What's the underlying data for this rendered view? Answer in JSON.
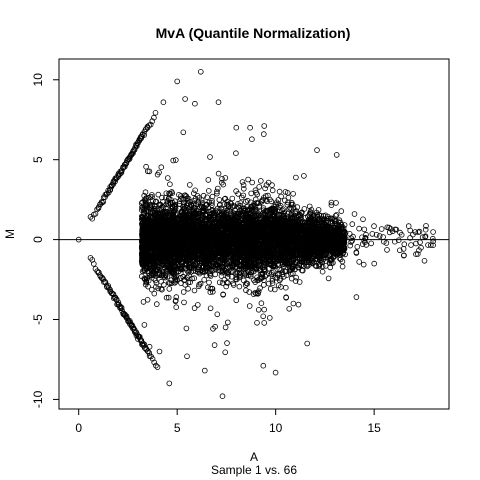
{
  "chart_data": {
    "type": "scatter",
    "title": "MvA (Quantile Normalization)",
    "xlabel": "A",
    "ylabel": "M",
    "subtitle": "Sample 1 vs. 66",
    "xlim": [
      -1.0,
      18.8
    ],
    "ylim": [
      -10.6,
      11.3
    ],
    "xticks": [
      0,
      5,
      10,
      15
    ],
    "yticks": [
      -10,
      -5,
      0,
      5,
      10
    ],
    "reference_line_y": 0,
    "point_style": "open-circle",
    "grid": false,
    "legend": "none",
    "point_count_approx": 6500,
    "upper_diagonal_arms": [
      {
        "a_start": 0.6,
        "a_end": 3.2,
        "slope": 2.0
      },
      {
        "a_start": 1.0,
        "a_end": 3.5,
        "slope": 2.0
      },
      {
        "a_start": 1.6,
        "a_end": 3.9,
        "slope": 2.0
      }
    ],
    "lower_diagonal_arms": [
      {
        "a_start": 0.6,
        "a_end": 3.3,
        "slope": -2.0
      },
      {
        "a_start": 1.0,
        "a_end": 3.6,
        "slope": -2.0
      },
      {
        "a_start": 1.6,
        "a_end": 4.0,
        "slope": -2.0
      }
    ],
    "dense_core": {
      "a_range": [
        3.2,
        13.5
      ],
      "m_spread_sd": 1.1
    },
    "outliers": [
      {
        "a": 0.0,
        "m": 0.0
      },
      {
        "a": 5.0,
        "m": 9.9
      },
      {
        "a": 6.2,
        "m": 10.5
      },
      {
        "a": 5.4,
        "m": 8.8
      },
      {
        "a": 5.9,
        "m": 8.5
      },
      {
        "a": 7.1,
        "m": 8.6
      },
      {
        "a": 4.3,
        "m": 8.6
      },
      {
        "a": 8.0,
        "m": 7.0
      },
      {
        "a": 8.7,
        "m": 7.0
      },
      {
        "a": 9.4,
        "m": 6.6
      },
      {
        "a": 12.1,
        "m": 5.6
      },
      {
        "a": 13.1,
        "m": 5.3
      },
      {
        "a": 14.0,
        "m": 1.6
      },
      {
        "a": 16.4,
        "m": 0.3
      },
      {
        "a": 17.3,
        "m": 0.5
      },
      {
        "a": 18.0,
        "m": -0.1
      },
      {
        "a": 15.0,
        "m": -1.5
      },
      {
        "a": 14.1,
        "m": -3.6
      },
      {
        "a": 11.6,
        "m": -6.5
      },
      {
        "a": 6.9,
        "m": -6.6
      },
      {
        "a": 5.5,
        "m": -7.3
      },
      {
        "a": 6.4,
        "m": -8.2
      },
      {
        "a": 4.6,
        "m": -9.0
      },
      {
        "a": 7.3,
        "m": -9.8
      },
      {
        "a": 4.1,
        "m": -7.0
      },
      {
        "a": 3.6,
        "m": -6.7
      },
      {
        "a": 10.9,
        "m": -4.0
      },
      {
        "a": 9.7,
        "m": -4.9
      }
    ]
  }
}
